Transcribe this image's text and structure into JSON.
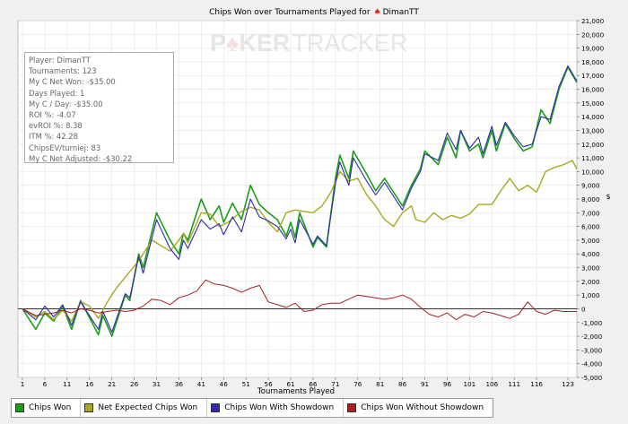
{
  "watermark": {
    "part1": "P",
    "part2": "KER",
    "part3": "TRACKER"
  },
  "infobox": [
    "Player: DimanTT",
    "Tournaments: 123",
    "My C Net Won: -$35.00",
    "Days Played: 1",
    "My C / Day: -$35.00",
    "ROI %: -4.07",
    "evROI %: 8.38",
    "ITM %: 42.28",
    "ChipsEV/turniej: 83",
    "My C Net Adjusted: -$30.22"
  ],
  "legend": [
    {
      "label": "Chips Won",
      "color": "#1a9e1a"
    },
    {
      "label": "Net Expected Chips Won",
      "color": "#a8a820"
    },
    {
      "label": "Chips Won With Showdown",
      "color": "#2c2ca8"
    },
    {
      "label": "Chips Won Without Showdown",
      "color": "#a82020"
    }
  ],
  "chart_data": {
    "type": "line",
    "title_prefix": "Chips Won over Tournaments Played for",
    "player": "DimanTT",
    "xlabel": "Tournaments Played",
    "ylabel": "$",
    "xlim": [
      1,
      123
    ],
    "ylim": [
      -5000,
      21000
    ],
    "xticks": [
      1,
      6,
      11,
      16,
      21,
      26,
      31,
      36,
      41,
      46,
      51,
      56,
      61,
      66,
      71,
      76,
      81,
      86,
      91,
      96,
      101,
      106,
      111,
      116,
      123
    ],
    "yticks": [
      -5000,
      -4000,
      -3000,
      -2000,
      -1000,
      0,
      1000,
      2000,
      3000,
      4000,
      5000,
      6000,
      7000,
      8000,
      9000,
      10000,
      11000,
      12000,
      13000,
      14000,
      15000,
      16000,
      17000,
      18000,
      19000,
      20000,
      21000
    ],
    "ytick_labels": [
      "-5,000",
      "-4,000",
      "-3,000",
      "-2,000",
      "-1,000",
      "0",
      "1,000",
      "2,000",
      "3,000",
      "4,000",
      "5,000",
      "6,000",
      "7,000",
      "8,000",
      "9,000",
      "10,000",
      "11,000",
      "12,000",
      "13,000",
      "14,000",
      "15,000",
      "16,000",
      "17,000",
      "18,000",
      "19,000",
      "20,000",
      "21,000"
    ],
    "series": [
      {
        "name": "Chips Won",
        "color": "#1a9e1a",
        "width": 1.6,
        "points": [
          [
            1,
            0
          ],
          [
            4,
            -1500
          ],
          [
            6,
            -300
          ],
          [
            8,
            -900
          ],
          [
            10,
            200
          ],
          [
            12,
            -1500
          ],
          [
            14,
            600
          ],
          [
            18,
            -1900
          ],
          [
            19,
            -500
          ],
          [
            21,
            -2000
          ],
          [
            24,
            1000
          ],
          [
            25,
            600
          ],
          [
            27,
            4000
          ],
          [
            28,
            3000
          ],
          [
            31,
            7000
          ],
          [
            34,
            5000
          ],
          [
            36,
            4000
          ],
          [
            37,
            5500
          ],
          [
            38,
            5000
          ],
          [
            41,
            8000
          ],
          [
            43,
            6500
          ],
          [
            45,
            7500
          ],
          [
            46,
            6300
          ],
          [
            48,
            7700
          ],
          [
            50,
            6500
          ],
          [
            52,
            9000
          ],
          [
            54,
            7600
          ],
          [
            56,
            7000
          ],
          [
            58,
            6500
          ],
          [
            60,
            5300
          ],
          [
            61,
            6300
          ],
          [
            62,
            5200
          ],
          [
            63,
            7000
          ],
          [
            66,
            4500
          ],
          [
            67,
            5200
          ],
          [
            69,
            4500
          ],
          [
            71,
            9500
          ],
          [
            72,
            11200
          ],
          [
            74,
            9500
          ],
          [
            75,
            11500
          ],
          [
            78,
            9800
          ],
          [
            80,
            8600
          ],
          [
            82,
            9500
          ],
          [
            86,
            7500
          ],
          [
            88,
            9000
          ],
          [
            90,
            10200
          ],
          [
            91,
            11500
          ],
          [
            94,
            10500
          ],
          [
            96,
            12500
          ],
          [
            98,
            11000
          ],
          [
            99,
            13000
          ],
          [
            101,
            11500
          ],
          [
            103,
            12000
          ],
          [
            104,
            11000
          ],
          [
            106,
            13000
          ],
          [
            107,
            11500
          ],
          [
            109,
            13500
          ],
          [
            111,
            12400
          ],
          [
            113,
            11500
          ],
          [
            115,
            11800
          ],
          [
            117,
            14500
          ],
          [
            119,
            13500
          ],
          [
            121,
            16000
          ],
          [
            123,
            17600
          ],
          [
            125,
            16500
          ]
        ]
      },
      {
        "name": "Net Expected Chips Won",
        "color": "#a8a820",
        "width": 1.4,
        "points": [
          [
            1,
            0
          ],
          [
            4,
            -600
          ],
          [
            6,
            -200
          ],
          [
            8,
            -800
          ],
          [
            10,
            -100
          ],
          [
            12,
            -900
          ],
          [
            14,
            500
          ],
          [
            16,
            200
          ],
          [
            18,
            -700
          ],
          [
            20,
            500
          ],
          [
            22,
            1500
          ],
          [
            25,
            2700
          ],
          [
            27,
            3500
          ],
          [
            30,
            5000
          ],
          [
            34,
            4200
          ],
          [
            36,
            5000
          ],
          [
            37,
            5500
          ],
          [
            38,
            4800
          ],
          [
            41,
            7000
          ],
          [
            43,
            6900
          ],
          [
            45,
            6000
          ],
          [
            47,
            6300
          ],
          [
            50,
            7100
          ],
          [
            52,
            7400
          ],
          [
            54,
            7200
          ],
          [
            56,
            6300
          ],
          [
            58,
            5600
          ],
          [
            60,
            7000
          ],
          [
            62,
            7200
          ],
          [
            64,
            7100
          ],
          [
            66,
            7000
          ],
          [
            68,
            7500
          ],
          [
            70,
            8500
          ],
          [
            72,
            10000
          ],
          [
            74,
            9300
          ],
          [
            76,
            9500
          ],
          [
            78,
            8300
          ],
          [
            80,
            7500
          ],
          [
            82,
            6500
          ],
          [
            84,
            6000
          ],
          [
            86,
            7000
          ],
          [
            88,
            7500
          ],
          [
            89,
            6500
          ],
          [
            91,
            6300
          ],
          [
            93,
            7000
          ],
          [
            95,
            6500
          ],
          [
            97,
            6800
          ],
          [
            99,
            6600
          ],
          [
            101,
            6900
          ],
          [
            103,
            7600
          ],
          [
            106,
            7600
          ],
          [
            108,
            8600
          ],
          [
            110,
            9500
          ],
          [
            112,
            8600
          ],
          [
            114,
            9000
          ],
          [
            116,
            8500
          ],
          [
            118,
            10000
          ],
          [
            120,
            10300
          ],
          [
            122,
            10500
          ],
          [
            124,
            10800
          ],
          [
            125,
            10200
          ]
        ]
      },
      {
        "name": "Chips Won With Showdown",
        "color": "#2c2ca8",
        "width": 1.1,
        "points": [
          [
            1,
            0
          ],
          [
            4,
            -800
          ],
          [
            6,
            200
          ],
          [
            8,
            -600
          ],
          [
            10,
            300
          ],
          [
            12,
            -1200
          ],
          [
            14,
            500
          ],
          [
            18,
            -1500
          ],
          [
            19,
            -200
          ],
          [
            21,
            -1700
          ],
          [
            24,
            1100
          ],
          [
            25,
            800
          ],
          [
            27,
            3800
          ],
          [
            28,
            2600
          ],
          [
            31,
            6500
          ],
          [
            34,
            4400
          ],
          [
            36,
            3600
          ],
          [
            37,
            5000
          ],
          [
            38,
            4400
          ],
          [
            41,
            6500
          ],
          [
            43,
            5800
          ],
          [
            45,
            6200
          ],
          [
            46,
            5400
          ],
          [
            48,
            6700
          ],
          [
            50,
            5600
          ],
          [
            52,
            8000
          ],
          [
            54,
            6700
          ],
          [
            56,
            6400
          ],
          [
            58,
            6000
          ],
          [
            60,
            5100
          ],
          [
            61,
            5800
          ],
          [
            62,
            4800
          ],
          [
            63,
            6500
          ],
          [
            66,
            4700
          ],
          [
            67,
            5300
          ],
          [
            69,
            4600
          ],
          [
            71,
            9100
          ],
          [
            72,
            10700
          ],
          [
            74,
            9000
          ],
          [
            75,
            11000
          ],
          [
            78,
            9300
          ],
          [
            80,
            8300
          ],
          [
            82,
            9200
          ],
          [
            86,
            7200
          ],
          [
            88,
            8800
          ],
          [
            90,
            10000
          ],
          [
            91,
            11300
          ],
          [
            94,
            10800
          ],
          [
            96,
            12800
          ],
          [
            98,
            11600
          ],
          [
            99,
            13000
          ],
          [
            101,
            11700
          ],
          [
            103,
            12500
          ],
          [
            104,
            11300
          ],
          [
            106,
            13300
          ],
          [
            107,
            11900
          ],
          [
            109,
            13600
          ],
          [
            111,
            12600
          ],
          [
            113,
            11800
          ],
          [
            115,
            12000
          ],
          [
            117,
            14000
          ],
          [
            119,
            13800
          ],
          [
            121,
            16200
          ],
          [
            123,
            17700
          ],
          [
            125,
            16600
          ]
        ]
      },
      {
        "name": "Chips Won Without Showdown",
        "color": "#a82020",
        "width": 1.0,
        "points": [
          [
            1,
            0
          ],
          [
            4,
            -500
          ],
          [
            6,
            -400
          ],
          [
            8,
            -300
          ],
          [
            10,
            -100
          ],
          [
            12,
            -300
          ],
          [
            14,
            0
          ],
          [
            16,
            -100
          ],
          [
            18,
            -300
          ],
          [
            20,
            -200
          ],
          [
            22,
            -100
          ],
          [
            24,
            -200
          ],
          [
            26,
            -100
          ],
          [
            28,
            200
          ],
          [
            30,
            700
          ],
          [
            32,
            600
          ],
          [
            34,
            300
          ],
          [
            36,
            800
          ],
          [
            38,
            1000
          ],
          [
            40,
            1300
          ],
          [
            42,
            2100
          ],
          [
            44,
            1800
          ],
          [
            46,
            1700
          ],
          [
            48,
            1500
          ],
          [
            50,
            1200
          ],
          [
            52,
            1500
          ],
          [
            54,
            1700
          ],
          [
            56,
            500
          ],
          [
            58,
            300
          ],
          [
            60,
            100
          ],
          [
            62,
            400
          ],
          [
            64,
            -200
          ],
          [
            66,
            -100
          ],
          [
            68,
            300
          ],
          [
            70,
            400
          ],
          [
            72,
            400
          ],
          [
            74,
            700
          ],
          [
            76,
            1000
          ],
          [
            78,
            900
          ],
          [
            80,
            800
          ],
          [
            82,
            700
          ],
          [
            84,
            800
          ],
          [
            86,
            1000
          ],
          [
            88,
            700
          ],
          [
            90,
            100
          ],
          [
            92,
            -400
          ],
          [
            94,
            -600
          ],
          [
            96,
            -300
          ],
          [
            98,
            -800
          ],
          [
            100,
            -400
          ],
          [
            102,
            -600
          ],
          [
            104,
            -200
          ],
          [
            106,
            -300
          ],
          [
            108,
            -500
          ],
          [
            110,
            -700
          ],
          [
            112,
            -400
          ],
          [
            114,
            500
          ],
          [
            116,
            -200
          ],
          [
            118,
            -400
          ],
          [
            120,
            -100
          ],
          [
            122,
            -200
          ],
          [
            124,
            -200
          ],
          [
            125,
            -200
          ]
        ]
      }
    ]
  }
}
